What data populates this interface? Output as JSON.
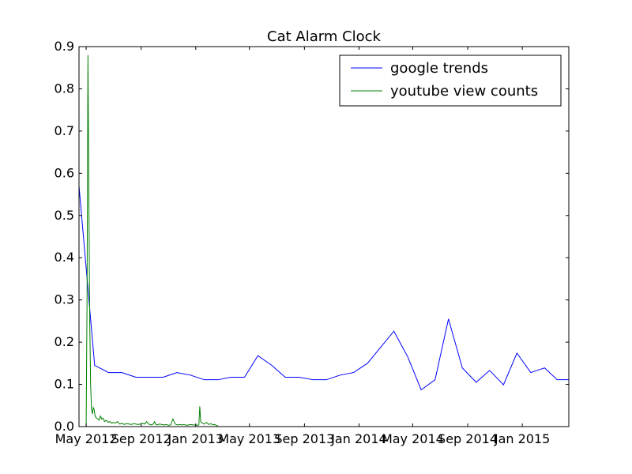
{
  "chart_data": {
    "type": "line",
    "title": "Cat Alarm Clock",
    "xlabel": "",
    "ylabel": "",
    "ylim": [
      0.0,
      0.9
    ],
    "xlim": [
      "2012-04-15",
      "2015-04-15"
    ],
    "grid": false,
    "legend_position": "top-right",
    "x_tick_labels": [
      "May 2012",
      "Sep 2012",
      "Jan 2013",
      "May 2013",
      "Sep 2013",
      "Jan 2014",
      "May 2014",
      "Sep 2014",
      "Jan 2015"
    ],
    "x_tick_dates": [
      "2012-05-01",
      "2012-09-01",
      "2013-01-01",
      "2013-05-01",
      "2013-09-01",
      "2014-01-01",
      "2014-05-01",
      "2014-09-01",
      "2015-01-01"
    ],
    "y_tick_labels": [
      "0.0",
      "0.1",
      "0.2",
      "0.3",
      "0.4",
      "0.5",
      "0.6",
      "0.7",
      "0.8",
      "0.9"
    ],
    "y_tick_values": [
      0.0,
      0.1,
      0.2,
      0.3,
      0.4,
      0.5,
      0.6,
      0.7,
      0.8,
      0.9
    ],
    "series": [
      {
        "name": "google trends",
        "color": "#0000ff",
        "x": [
          "2012-04-15",
          "2012-05-20",
          "2012-06-20",
          "2012-07-20",
          "2012-08-20",
          "2012-09-20",
          "2012-10-20",
          "2012-11-20",
          "2012-12-20",
          "2013-01-20",
          "2013-02-20",
          "2013-03-20",
          "2013-04-20",
          "2013-05-20",
          "2013-06-20",
          "2013-07-20",
          "2013-08-20",
          "2013-09-20",
          "2013-10-20",
          "2013-11-20",
          "2013-12-20",
          "2014-01-20",
          "2014-02-20",
          "2014-03-20",
          "2014-04-20",
          "2014-05-20",
          "2014-06-20",
          "2014-07-20",
          "2014-08-20",
          "2014-09-20",
          "2014-10-20",
          "2014-11-20",
          "2014-12-20",
          "2015-01-20",
          "2015-02-20",
          "2015-03-20",
          "2015-04-15"
        ],
        "y": [
          0.57,
          0.145,
          0.128,
          0.128,
          0.117,
          0.117,
          0.117,
          0.128,
          0.122,
          0.111,
          0.111,
          0.117,
          0.117,
          0.168,
          0.145,
          0.117,
          0.117,
          0.111,
          0.111,
          0.122,
          0.128,
          0.15,
          0.19,
          0.226,
          0.165,
          0.087,
          0.111,
          0.255,
          0.139,
          0.105,
          0.133,
          0.099,
          0.174,
          0.128,
          0.139,
          0.111,
          0.111
        ]
      },
      {
        "name": "youtube view counts",
        "color": "#008000",
        "x": [
          "2012-05-01",
          "2012-05-03",
          "2012-05-05",
          "2012-05-07",
          "2012-05-09",
          "2012-05-11",
          "2012-05-13",
          "2012-05-15",
          "2012-05-17",
          "2012-05-19",
          "2012-05-21",
          "2012-05-24",
          "2012-05-27",
          "2012-05-30",
          "2012-06-02",
          "2012-06-05",
          "2012-06-08",
          "2012-06-11",
          "2012-06-15",
          "2012-06-19",
          "2012-06-23",
          "2012-06-27",
          "2012-07-01",
          "2012-07-05",
          "2012-07-10",
          "2012-07-15",
          "2012-07-20",
          "2012-07-25",
          "2012-07-30",
          "2012-08-05",
          "2012-08-10",
          "2012-08-15",
          "2012-08-20",
          "2012-08-25",
          "2012-08-30",
          "2012-09-04",
          "2012-09-09",
          "2012-09-13",
          "2012-09-18",
          "2012-09-23",
          "2012-09-28",
          "2012-10-01",
          "2012-10-04",
          "2012-10-07",
          "2012-10-12",
          "2012-10-17",
          "2012-10-22",
          "2012-10-27",
          "2012-11-01",
          "2012-11-06",
          "2012-11-11",
          "2012-11-16",
          "2012-11-21",
          "2012-11-26",
          "2012-12-01",
          "2012-12-06",
          "2012-12-11",
          "2012-12-16",
          "2012-12-21",
          "2012-12-26",
          "2012-12-31",
          "2013-01-04",
          "2013-01-08",
          "2013-01-10",
          "2013-01-12",
          "2013-01-14",
          "2013-01-16",
          "2013-01-20",
          "2013-01-25",
          "2013-01-30",
          "2013-02-04",
          "2013-02-08",
          "2013-02-12",
          "2013-02-16",
          "2013-02-20"
        ],
        "y": [
          0.0,
          0.3,
          0.88,
          0.55,
          0.25,
          0.1,
          0.04,
          0.03,
          0.045,
          0.04,
          0.025,
          0.02,
          0.018,
          0.015,
          0.025,
          0.018,
          0.02,
          0.012,
          0.015,
          0.01,
          0.012,
          0.008,
          0.01,
          0.008,
          0.012,
          0.006,
          0.008,
          0.005,
          0.007,
          0.006,
          0.005,
          0.007,
          0.006,
          0.005,
          0.006,
          0.008,
          0.006,
          0.012,
          0.006,
          0.004,
          0.006,
          0.012,
          0.005,
          0.004,
          0.006,
          0.005,
          0.004,
          0.005,
          0.003,
          0.004,
          0.018,
          0.006,
          0.004,
          0.005,
          0.004,
          0.005,
          0.003,
          0.004,
          0.005,
          0.004,
          0.004,
          0.003,
          0.004,
          0.048,
          0.012,
          0.01,
          0.008,
          0.006,
          0.01,
          0.005,
          0.007,
          0.004,
          0.005,
          0.003,
          0.001
        ]
      }
    ]
  }
}
